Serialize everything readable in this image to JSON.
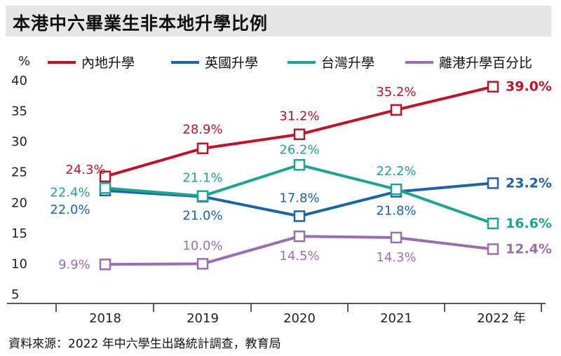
{
  "title": "本港中六畢業生非本地升學比例",
  "source": "資料來源：2022 年中六學生出路統計調查，教育局",
  "chart_data": {
    "type": "line",
    "ylabel": "%",
    "ylim": [
      5,
      40
    ],
    "yticks": [
      "5",
      "10",
      "15",
      "20",
      "25",
      "30",
      "35",
      "40"
    ],
    "categories": [
      "2018",
      "2019",
      "2020",
      "2021",
      "2022"
    ],
    "x_unit": "年",
    "legend_position": "top",
    "series": [
      {
        "name": "內地升學",
        "color": "#c0132a",
        "values": [
          24.3,
          28.9,
          31.2,
          35.2,
          39.0
        ],
        "labels": [
          "24.3%",
          "28.9%",
          "31.2%",
          "35.2%",
          "39.0%"
        ]
      },
      {
        "name": "英國升學",
        "color": "#1a64a8",
        "values": [
          22.0,
          21.0,
          17.8,
          21.8,
          23.2
        ],
        "labels": [
          "22.0%",
          "21.0%",
          "17.8%",
          "21.8%",
          "23.2%"
        ]
      },
      {
        "name": "台灣升學",
        "color": "#20a492",
        "values": [
          22.4,
          21.1,
          26.2,
          22.2,
          16.6
        ],
        "labels": [
          "22.4%",
          "21.1%",
          "26.2%",
          "22.2%",
          "16.6%"
        ]
      },
      {
        "name": "離港升學百分比",
        "color": "#9a6fb0",
        "values": [
          9.9,
          10.0,
          14.5,
          14.3,
          12.4
        ],
        "labels": [
          "9.9%",
          "10.0%",
          "14.5%",
          "14.3%",
          "12.4%"
        ]
      }
    ]
  }
}
